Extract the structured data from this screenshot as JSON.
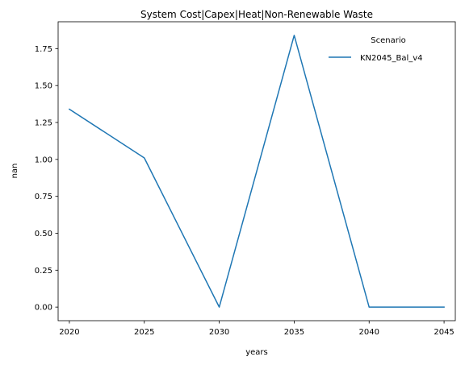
{
  "chart_data": {
    "type": "line",
    "title": "System Cost|Capex|Heat|Non-Renewable Waste",
    "xlabel": "years",
    "ylabel": "nan",
    "x": [
      2020,
      2025,
      2030,
      2035,
      2040,
      2045
    ],
    "xticks": [
      "2020",
      "2025",
      "2030",
      "2035",
      "2040",
      "2045"
    ],
    "yticks": [
      "0.00",
      "0.25",
      "0.50",
      "0.75",
      "1.00",
      "1.25",
      "1.50",
      "1.75"
    ],
    "xlim": [
      2019.25,
      2045.75
    ],
    "ylim": [
      -0.092,
      1.932
    ],
    "grid": false,
    "legend": {
      "title": "Scenario",
      "placement": "upper right"
    },
    "series": [
      {
        "name": "KN2045_Bal_v4",
        "color": "#1f77b4",
        "values": [
          1.34,
          1.01,
          0.0,
          1.84,
          0.0,
          0.0
        ]
      }
    ]
  }
}
